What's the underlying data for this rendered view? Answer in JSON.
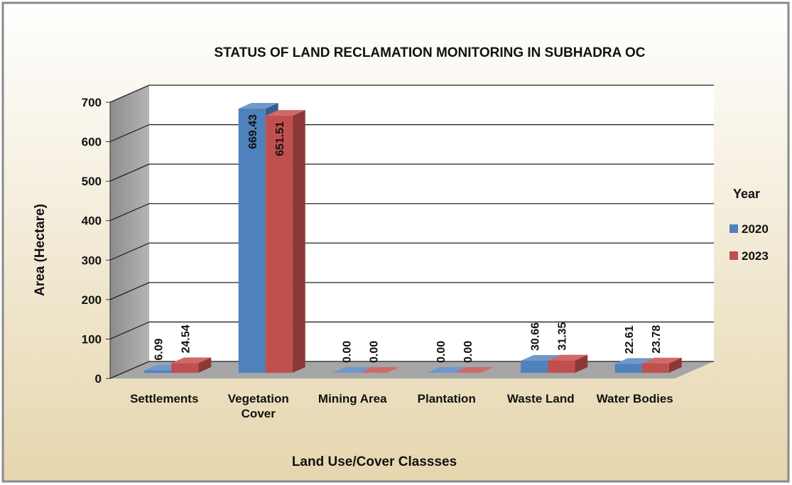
{
  "chart_data": {
    "type": "bar3d",
    "title": "STATUS OF LAND RECLAMATION MONITORING IN SUBHADRA OC",
    "x_label": "Land Use/Cover Classses",
    "y_label": "Area (Hectare)",
    "legend_title": "Year",
    "legend_position": "right",
    "categories": [
      "Settlements",
      "Vegetation Cover",
      "Mining Area",
      "Plantation",
      "Waste Land",
      "Water Bodies"
    ],
    "series": [
      {
        "name": "2020",
        "color": "#4f81bd",
        "side_color": "#385d8a",
        "top_color": "#6f98cc",
        "values": [
          6.09,
          669.43,
          0,
          0,
          30.66,
          22.61
        ],
        "value_labels": [
          "6.09",
          "669.43",
          "0.00",
          "0.00",
          "30.66",
          "22.61"
        ]
      },
      {
        "name": "2023",
        "color": "#c0504d",
        "side_color": "#8c3836",
        "top_color": "#d06a67",
        "values": [
          24.54,
          651.51,
          0,
          0,
          31.35,
          23.78
        ],
        "value_labels": [
          "24.54",
          "651.51",
          "0.00",
          "0.00",
          "31.35",
          "23.78"
        ]
      }
    ],
    "ylim": [
      0,
      700
    ],
    "yticks": [
      0,
      100,
      200,
      300,
      400,
      500,
      600,
      700
    ],
    "grid": true
  }
}
